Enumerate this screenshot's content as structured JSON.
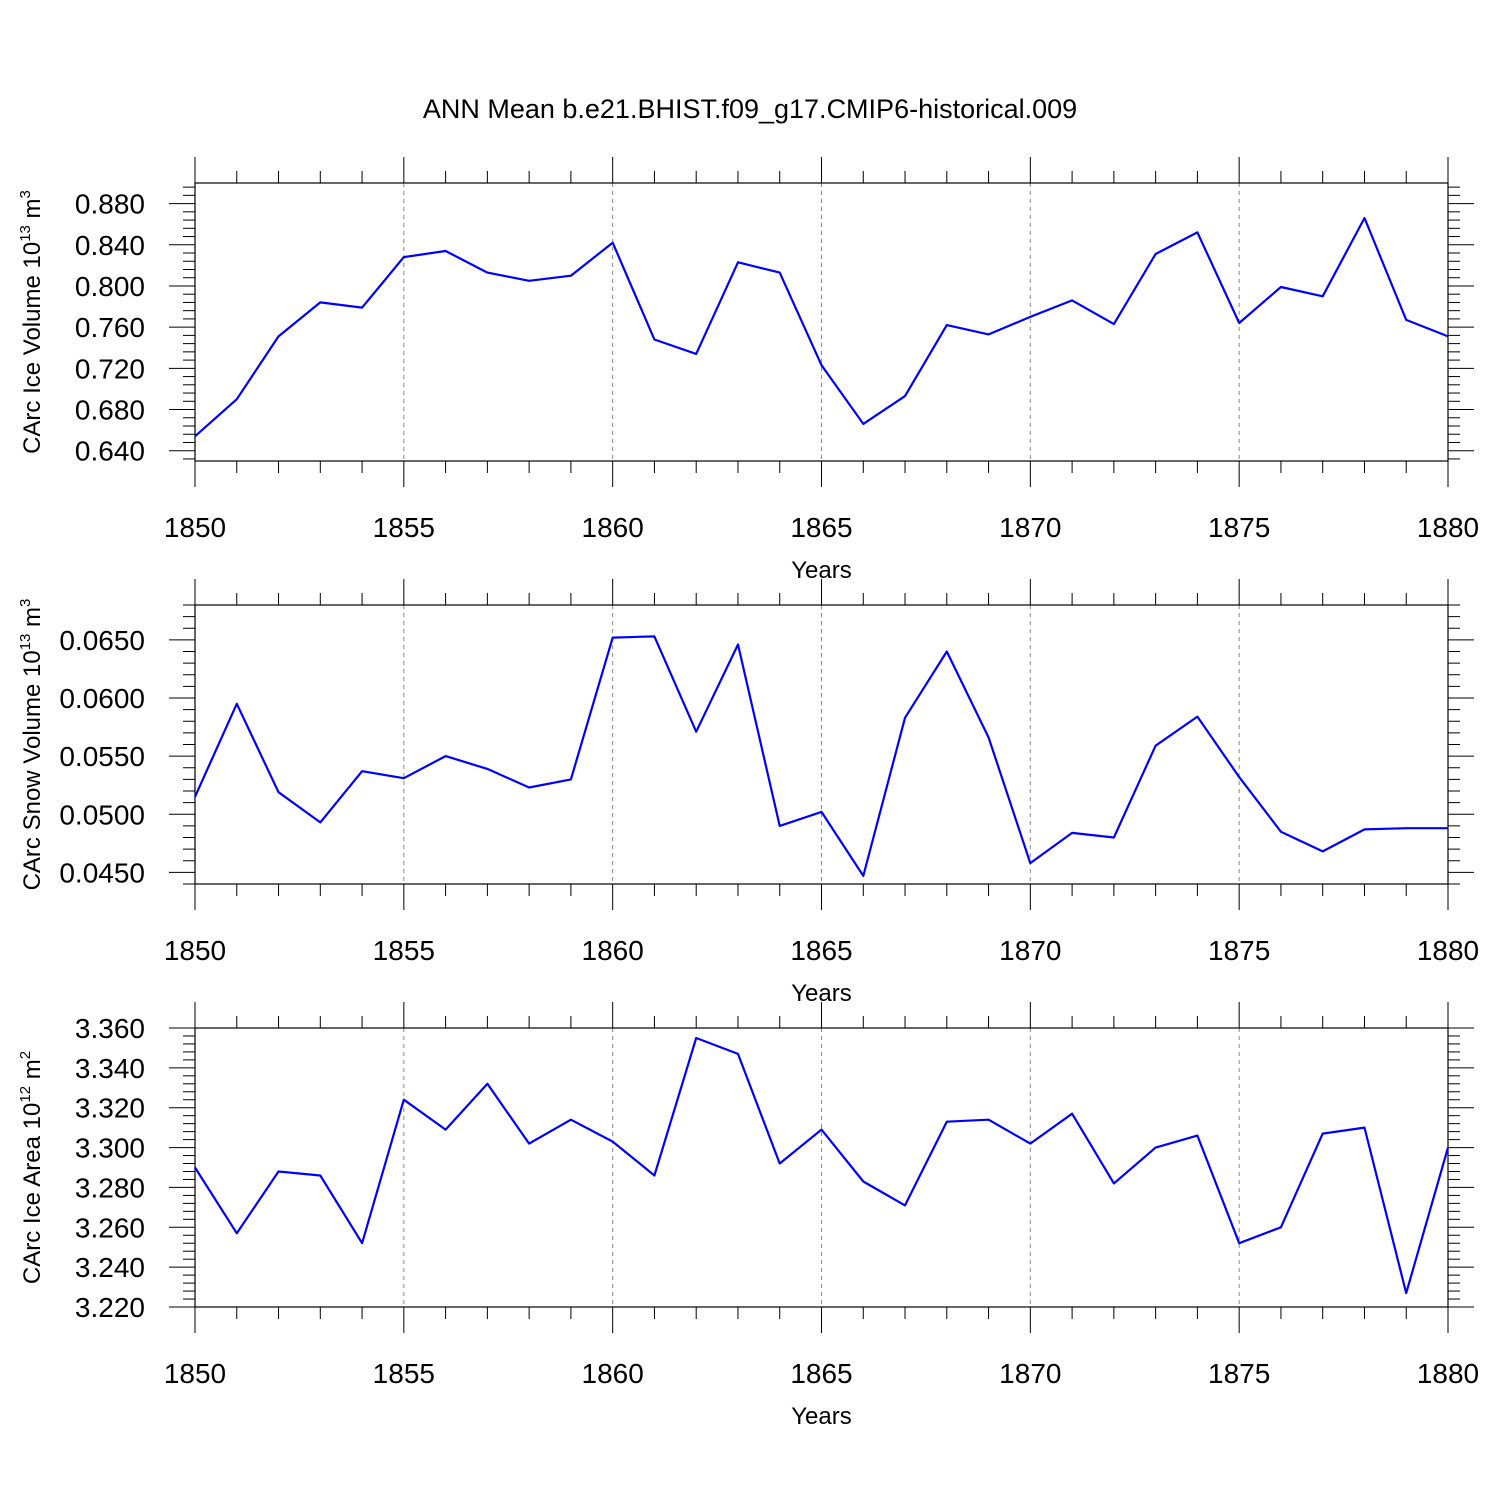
{
  "title": "ANN Mean b.e21.BHIST.f09_g17.CMIP6-historical.009",
  "colors": {
    "line": "#0000ff",
    "axes": "#000000",
    "grid": "#8a8a8a"
  },
  "chart_data": [
    {
      "type": "line",
      "ylabel": {
        "text": "CArc Ice Volume 10",
        "exp": "13",
        "unit": " m",
        "unit_exp": "3"
      },
      "xlabel": "Years",
      "xlim": [
        1850,
        1880
      ],
      "ylim": [
        0.63,
        0.9
      ],
      "grid": "dashed vertical at major x ticks",
      "yticks": [
        {
          "v": 0.64,
          "label": "0.640"
        },
        {
          "v": 0.68,
          "label": "0.680"
        },
        {
          "v": 0.72,
          "label": "0.720"
        },
        {
          "v": 0.76,
          "label": "0.760"
        },
        {
          "v": 0.8,
          "label": "0.800"
        },
        {
          "v": 0.84,
          "label": "0.840"
        },
        {
          "v": 0.88,
          "label": "0.880"
        }
      ],
      "xticks": [
        {
          "v": 1850,
          "label": "1850"
        },
        {
          "v": 1855,
          "label": "1855"
        },
        {
          "v": 1860,
          "label": "1860"
        },
        {
          "v": 1865,
          "label": "1865"
        },
        {
          "v": 1870,
          "label": "1870"
        },
        {
          "v": 1875,
          "label": "1875"
        },
        {
          "v": 1880,
          "label": "1880"
        }
      ],
      "x": [
        1850,
        1851,
        1852,
        1853,
        1854,
        1855,
        1856,
        1857,
        1858,
        1859,
        1860,
        1861,
        1862,
        1863,
        1864,
        1865,
        1866,
        1867,
        1868,
        1869,
        1870,
        1871,
        1872,
        1873,
        1874,
        1875,
        1876,
        1877,
        1878,
        1879,
        1880
      ],
      "values": [
        0.654,
        0.69,
        0.751,
        0.784,
        0.779,
        0.828,
        0.834,
        0.813,
        0.805,
        0.81,
        0.842,
        0.748,
        0.734,
        0.823,
        0.813,
        0.723,
        0.666,
        0.693,
        0.762,
        0.753,
        0.77,
        0.786,
        0.763,
        0.831,
        0.852,
        0.764,
        0.799,
        0.79,
        0.866,
        0.767,
        0.751
      ]
    },
    {
      "type": "line",
      "ylabel": {
        "text": "CArc Snow Volume 10",
        "exp": "13",
        "unit": " m",
        "unit_exp": "3"
      },
      "xlabel": "Years",
      "xlim": [
        1850,
        1880
      ],
      "ylim": [
        0.044,
        0.068
      ],
      "grid": "dashed vertical at major x ticks",
      "yticks": [
        {
          "v": 0.045,
          "label": "0.0450"
        },
        {
          "v": 0.05,
          "label": "0.0500"
        },
        {
          "v": 0.055,
          "label": "0.0550"
        },
        {
          "v": 0.06,
          "label": "0.0600"
        },
        {
          "v": 0.065,
          "label": "0.0650"
        }
      ],
      "xticks": [
        {
          "v": 1850,
          "label": "1850"
        },
        {
          "v": 1855,
          "label": "1855"
        },
        {
          "v": 1860,
          "label": "1860"
        },
        {
          "v": 1865,
          "label": "1865"
        },
        {
          "v": 1870,
          "label": "1870"
        },
        {
          "v": 1875,
          "label": "1875"
        },
        {
          "v": 1880,
          "label": "1880"
        }
      ],
      "x": [
        1850,
        1851,
        1852,
        1853,
        1854,
        1855,
        1856,
        1857,
        1858,
        1859,
        1860,
        1861,
        1862,
        1863,
        1864,
        1865,
        1866,
        1867,
        1868,
        1869,
        1870,
        1871,
        1872,
        1873,
        1874,
        1875,
        1876,
        1877,
        1878,
        1879,
        1880
      ],
      "values": [
        0.0515,
        0.0595,
        0.0519,
        0.0493,
        0.0537,
        0.0531,
        0.055,
        0.0539,
        0.0523,
        0.053,
        0.0652,
        0.0653,
        0.0571,
        0.0646,
        0.049,
        0.0502,
        0.0447,
        0.0583,
        0.064,
        0.0566,
        0.0458,
        0.0484,
        0.048,
        0.0559,
        0.0584,
        0.0532,
        0.0485,
        0.0468,
        0.0487,
        0.0488,
        0.0488
      ]
    },
    {
      "type": "line",
      "ylabel": {
        "text": "CArc Ice Area 10",
        "exp": "12",
        "unit": " m",
        "unit_exp": "2"
      },
      "xlabel": "Years",
      "xlim": [
        1850,
        1880
      ],
      "ylim": [
        3.22,
        3.36
      ],
      "grid": "dashed vertical at major x ticks",
      "yticks": [
        {
          "v": 3.22,
          "label": "3.220"
        },
        {
          "v": 3.24,
          "label": "3.240"
        },
        {
          "v": 3.26,
          "label": "3.260"
        },
        {
          "v": 3.28,
          "label": "3.280"
        },
        {
          "v": 3.3,
          "label": "3.300"
        },
        {
          "v": 3.32,
          "label": "3.320"
        },
        {
          "v": 3.34,
          "label": "3.340"
        },
        {
          "v": 3.36,
          "label": "3.360"
        }
      ],
      "xticks": [
        {
          "v": 1850,
          "label": "1850"
        },
        {
          "v": 1855,
          "label": "1855"
        },
        {
          "v": 1860,
          "label": "1860"
        },
        {
          "v": 1865,
          "label": "1865"
        },
        {
          "v": 1870,
          "label": "1870"
        },
        {
          "v": 1875,
          "label": "1875"
        },
        {
          "v": 1880,
          "label": "1880"
        }
      ],
      "x": [
        1850,
        1851,
        1852,
        1853,
        1854,
        1855,
        1856,
        1857,
        1858,
        1859,
        1860,
        1861,
        1862,
        1863,
        1864,
        1865,
        1866,
        1867,
        1868,
        1869,
        1870,
        1871,
        1872,
        1873,
        1874,
        1875,
        1876,
        1877,
        1878,
        1879,
        1880
      ],
      "values": [
        3.29,
        3.257,
        3.288,
        3.286,
        3.252,
        3.324,
        3.309,
        3.332,
        3.302,
        3.314,
        3.303,
        3.286,
        3.355,
        3.347,
        3.292,
        3.309,
        3.283,
        3.271,
        3.313,
        3.314,
        3.302,
        3.317,
        3.282,
        3.3,
        3.306,
        3.252,
        3.26,
        3.307,
        3.31,
        3.227,
        3.3
      ]
    }
  ]
}
